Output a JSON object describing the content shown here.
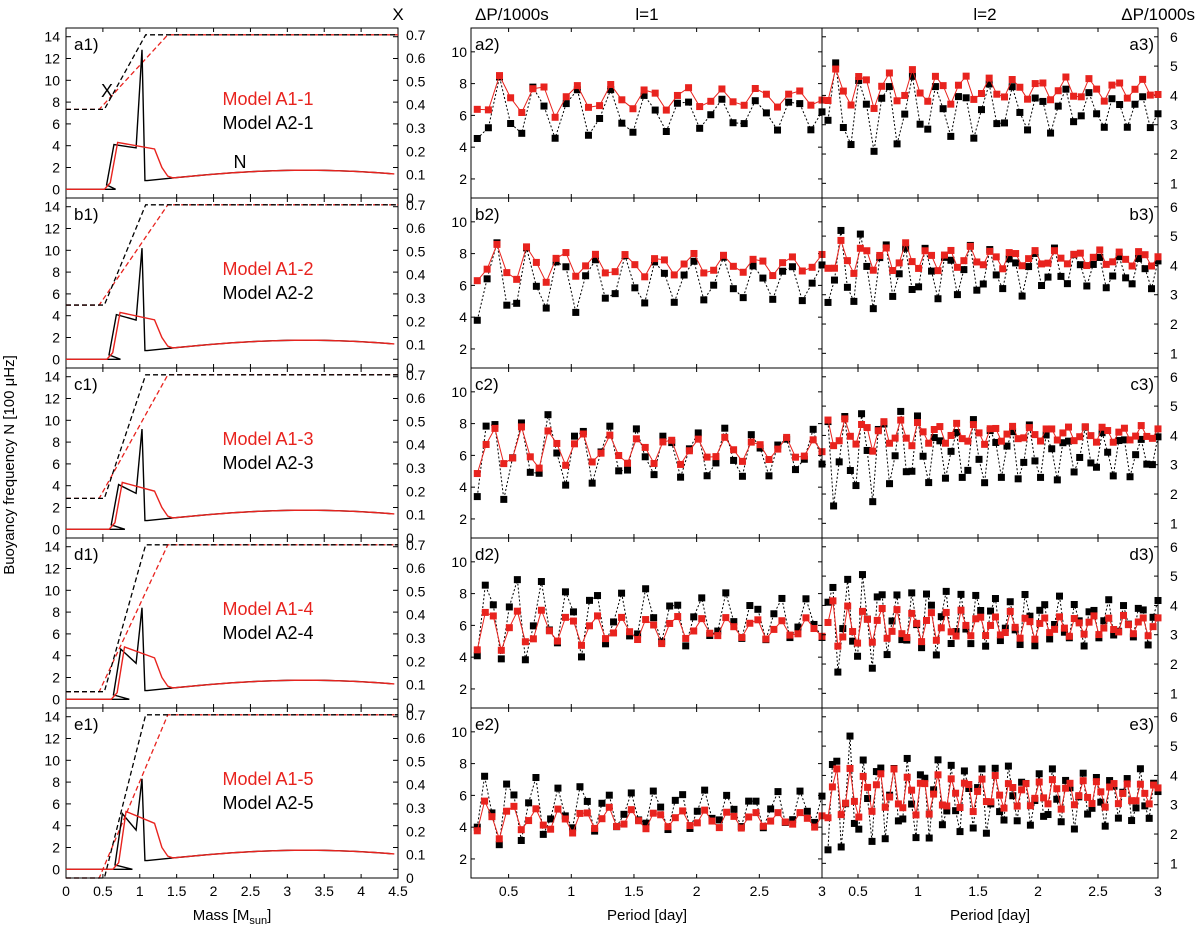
{
  "chart_data": {
    "type": "line",
    "colors": {
      "red": "#e8231e",
      "black": "#000000"
    },
    "headers": {
      "x_axis_title": "X",
      "dp_left": "ΔP/1000s",
      "l1": "l=1",
      "l2": "l=2",
      "dp_right": "ΔP/1000s"
    },
    "left_column": {
      "ylabel": "Buoyancy frequency N [100 μHz]",
      "xlabel_main": "Mass [M",
      "xlabel_sub": "sun",
      "xlabel_end": "]",
      "xlim": [
        0,
        4.5
      ],
      "ylim_N": [
        -0.8,
        14.8
      ],
      "ylim_X": [
        0,
        0.7
      ],
      "x_ticks": [
        "0",
        "0.5",
        "1",
        "1.5",
        "2",
        "2.5",
        "3",
        "3.5",
        "4",
        "4.5"
      ],
      "N_ticks": [
        "0",
        "2",
        "4",
        "6",
        "8",
        "10",
        "12",
        "14"
      ],
      "X_ticks": [
        "0",
        "0.1",
        "0.2",
        "0.3",
        "0.4",
        "0.5",
        "0.6",
        "0.7"
      ],
      "curve_labels": {
        "X": "X",
        "N": "N"
      }
    },
    "period_axes": {
      "xlabel": "Period [day]",
      "xlim": [
        0.2,
        3.0
      ],
      "x_ticks_l1": [
        "0.5",
        "1",
        "1.5",
        "2",
        "2.5",
        "3"
      ],
      "x_ticks_l2": [
        "0.5",
        "1",
        "1.5",
        "2",
        "2.5",
        "3"
      ]
    },
    "rows": [
      {
        "labels": [
          "a1)",
          "a2)",
          "a3)"
        ],
        "model_red": "Model A1-1",
        "model_black": "Model A2-1",
        "xc": 0.38,
        "spike": 12.8,
        "plateau_red": 4.3,
        "slope_black": 0.0,
        "dp_l1_ylim": [
          0.8,
          11.5
        ],
        "dp_l1_ticks": [
          "2",
          "4",
          "6",
          "8",
          "10"
        ],
        "dp_l2_ylim": [
          0.5,
          6.3
        ],
        "dp_l2_ticks": [
          "1",
          "2",
          "3",
          "4",
          "5",
          "6"
        ],
        "l1_black_min": 3.1,
        "l1_black_max": 9.2,
        "l1_red_min": 5.2,
        "l1_red_max": 9.0,
        "l2_black_min": 1.7,
        "l2_black_max": 5.3,
        "l2_red_min": 3.2,
        "l2_red_max": 5.2
      },
      {
        "labels": [
          "b1)",
          "b2)",
          "b3)"
        ],
        "model_red": "Model A1-2",
        "model_black": "Model A2-2",
        "xc": 0.27,
        "spike": 10.2,
        "plateau_red": 4.3,
        "slope_black": 0.2,
        "dp_l1_ylim": [
          0.8,
          11.5
        ],
        "dp_l1_ticks": [
          "2",
          "4",
          "6",
          "8",
          "10"
        ],
        "dp_l2_ylim": [
          0.5,
          6.3
        ],
        "dp_l2_ticks": [
          "1",
          "2",
          "3",
          "4",
          "5",
          "6"
        ],
        "l1_black_min": 2.6,
        "l1_black_max": 9.9,
        "l1_red_min": 5.6,
        "l1_red_max": 9.0,
        "l2_black_min": 2.0,
        "l2_black_max": 5.6,
        "l2_red_min": 3.5,
        "l2_red_max": 5.0
      },
      {
        "labels": [
          "c1)",
          "c2)",
          "c3)"
        ],
        "model_red": "Model A1-3",
        "model_black": "Model A2-3",
        "xc": 0.17,
        "spike": 9.2,
        "plateau_red": 4.3,
        "slope_black": 0.5,
        "dp_l1_ylim": [
          0.8,
          11.5
        ],
        "dp_l1_ticks": [
          "2",
          "4",
          "6",
          "8",
          "10"
        ],
        "dp_l2_ylim": [
          0.5,
          6.3
        ],
        "dp_l2_ticks": [
          "1",
          "2",
          "3",
          "4",
          "5",
          "6"
        ],
        "l1_black_min": 2.2,
        "l1_black_max": 10.0,
        "l1_red_min": 4.2,
        "l1_red_max": 8.5,
        "l2_black_min": 1.2,
        "l2_black_max": 5.5,
        "l2_red_min": 3.3,
        "l2_red_max": 4.8
      },
      {
        "labels": [
          "d1)",
          "d2)",
          "d3)"
        ],
        "model_red": "Model A1-4",
        "model_black": "Model A2-4",
        "xc": 0.07,
        "spike": 8.4,
        "plateau_red": 4.8,
        "slope_black": 1.0,
        "dp_l1_ylim": [
          0.8,
          11.5
        ],
        "dp_l1_ticks": [
          "2",
          "4",
          "6",
          "8",
          "10"
        ],
        "dp_l2_ylim": [
          0.5,
          6.3
        ],
        "dp_l2_ticks": [
          "1",
          "2",
          "3",
          "4",
          "5",
          "6"
        ],
        "l1_black_min": 2.4,
        "l1_black_max": 10.5,
        "l1_red_min": 3.8,
        "l1_red_max": 7.8,
        "l2_black_min": 1.3,
        "l2_black_max": 5.6,
        "l2_red_min": 2.3,
        "l2_red_max": 4.3
      },
      {
        "labels": [
          "e1)",
          "e2)",
          "e3)"
        ],
        "model_red": "Model A1-5",
        "model_black": "Model A2-5",
        "xc": 0.0,
        "spike": 8.3,
        "plateau_red": 5.3,
        "slope_black": 1.2,
        "dp_l1_ylim": [
          0.8,
          11.5
        ],
        "dp_l1_ticks": [
          "2",
          "4",
          "6",
          "8",
          "10"
        ],
        "dp_l2_ylim": [
          0.5,
          6.3
        ],
        "dp_l2_ticks": [
          "1",
          "2",
          "3",
          "4",
          "5",
          "6"
        ],
        "l1_black_min": 2.1,
        "l1_black_max": 8.1,
        "l1_red_min": 3.1,
        "l1_red_max": 5.9,
        "l2_black_min": 0.7,
        "l2_black_max": 5.7,
        "l2_red_min": 2.2,
        "l2_red_max": 4.6
      }
    ]
  }
}
